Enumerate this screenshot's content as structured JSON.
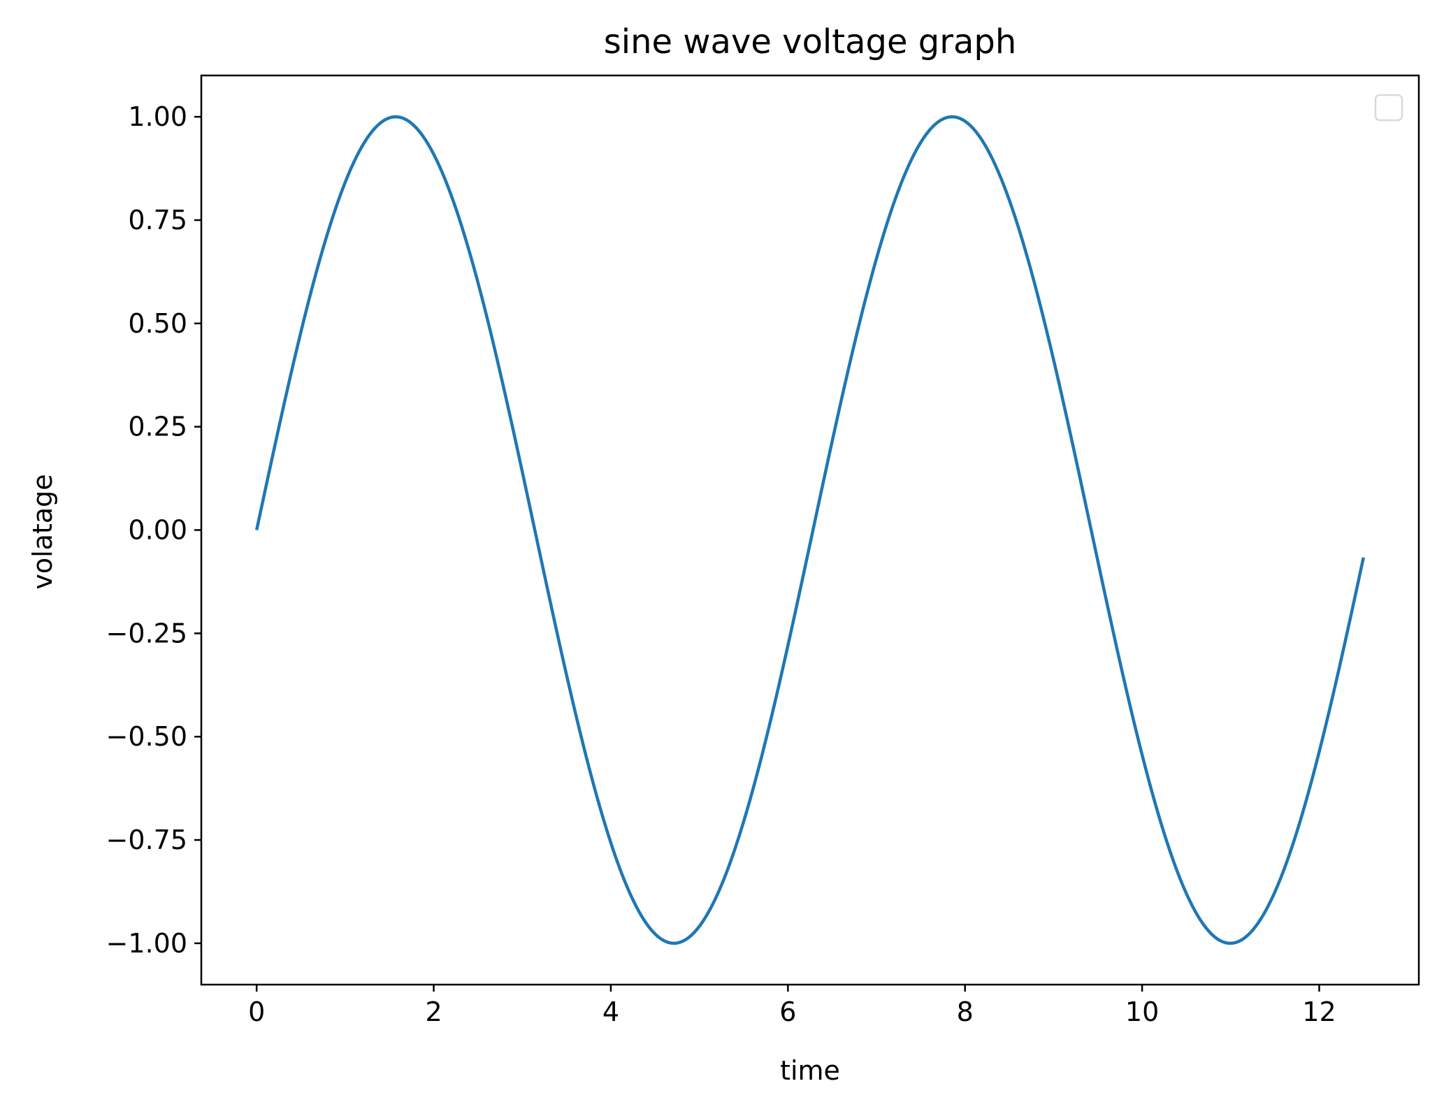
{
  "chart_data": {
    "type": "line",
    "title": "sine wave voltage graph",
    "xlabel": "time",
    "ylabel": "volatage",
    "xlim": [
      -0.625,
      13.125
    ],
    "ylim": [
      -1.1,
      1.1
    ],
    "xticks": [
      0,
      2,
      4,
      6,
      8,
      10,
      12
    ],
    "xtick_labels": [
      "0",
      "2",
      "4",
      "6",
      "8",
      "10",
      "12"
    ],
    "yticks": [
      1.0,
      0.75,
      0.5,
      0.25,
      0.0,
      -0.25,
      -0.5,
      -0.75,
      -1.0
    ],
    "ytick_labels": [
      "1.00",
      "0.75",
      "0.50",
      "0.25",
      "0.00",
      "−0.25",
      "−0.50",
      "−0.75",
      "−1.00"
    ],
    "grid": false,
    "legend": {
      "placement": "top-right",
      "entries": []
    },
    "series": [
      {
        "function": "sin",
        "color": "#1f77b4",
        "x": [
          0.0,
          0.5,
          1.0,
          1.5,
          2.0,
          2.5,
          3.0,
          3.5,
          4.0,
          4.5,
          5.0,
          5.5,
          6.0,
          6.5,
          7.0,
          7.5,
          8.0,
          8.5,
          9.0,
          9.5,
          10.0,
          10.5,
          11.0,
          11.5,
          12.0,
          12.5
        ],
        "y": [
          0.0,
          0.479,
          0.841,
          0.997,
          0.909,
          0.598,
          0.141,
          -0.351,
          -0.757,
          -0.978,
          -0.959,
          -0.706,
          -0.279,
          0.215,
          0.657,
          0.938,
          0.989,
          0.798,
          0.412,
          -0.075,
          -0.544,
          -0.88,
          -1.0,
          -0.875,
          -0.537,
          -0.066
        ]
      }
    ]
  }
}
